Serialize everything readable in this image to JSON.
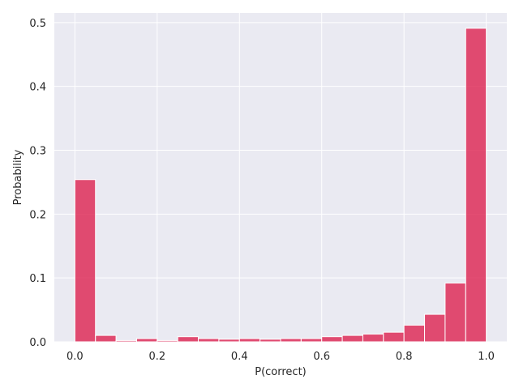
{
  "chart_data": {
    "type": "bar",
    "subtype": "histogram",
    "xlabel": "P(correct)",
    "ylabel": "Probability",
    "xlim": [
      -0.05,
      1.05
    ],
    "ylim": [
      0,
      0.515
    ],
    "bin_width": 0.05,
    "bins": [
      0.0,
      0.05,
      0.1,
      0.15,
      0.2,
      0.25,
      0.3,
      0.35,
      0.4,
      0.45,
      0.5,
      0.55,
      0.6,
      0.65,
      0.7,
      0.75,
      0.8,
      0.85,
      0.9,
      0.95
    ],
    "values": [
      0.254,
      0.01,
      0.002,
      0.005,
      0.002,
      0.008,
      0.005,
      0.004,
      0.005,
      0.004,
      0.005,
      0.005,
      0.008,
      0.01,
      0.012,
      0.015,
      0.026,
      0.043,
      0.092,
      0.491
    ],
    "x_ticks": [
      0.0,
      0.2,
      0.4,
      0.6,
      0.8,
      1.0
    ],
    "x_tick_labels": [
      "0.0",
      "0.2",
      "0.4",
      "0.6",
      "0.8",
      "1.0"
    ],
    "y_ticks": [
      0.0,
      0.1,
      0.2,
      0.3,
      0.4,
      0.5
    ],
    "y_tick_labels": [
      "0.0",
      "0.1",
      "0.2",
      "0.3",
      "0.4",
      "0.5"
    ],
    "grid": true,
    "style": "seaborn-darkgrid",
    "bar_color": "#dc1c4b",
    "plot_background": "#eaeaf2",
    "grid_color": "#ffffff"
  }
}
